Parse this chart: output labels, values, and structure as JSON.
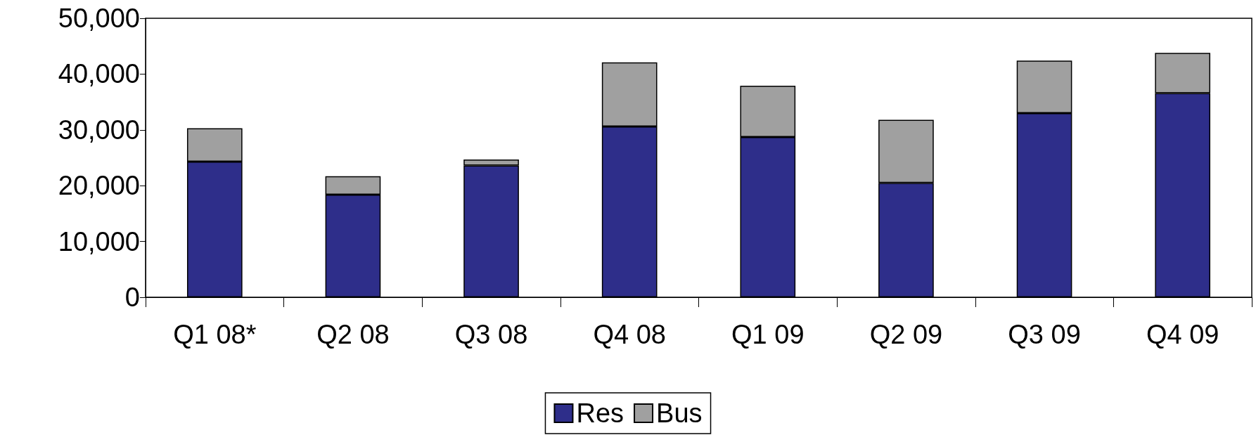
{
  "chart_data": {
    "type": "bar",
    "stacked": true,
    "categories": [
      "Q1 08*",
      "Q2 08",
      "Q3 08",
      "Q4 08",
      "Q1 09",
      "Q2 09",
      "Q3 09",
      "Q4 09"
    ],
    "series": [
      {
        "name": "Res",
        "color": "#2e2e8a",
        "values": [
          24300,
          18400,
          23600,
          30600,
          28700,
          20500,
          33000,
          36600
        ]
      },
      {
        "name": "Bus",
        "color": "#a0a0a0",
        "values": [
          6000,
          3300,
          1100,
          11500,
          9200,
          11300,
          9400,
          7200
        ]
      }
    ],
    "ylim": [
      0,
      50000
    ],
    "yticks": [
      0,
      {
        "value": 10000,
        "label": "10,000"
      },
      {
        "value": 20000,
        "label": "20,000"
      },
      {
        "value": 30000,
        "label": "30,000"
      },
      {
        "value": 40000,
        "label": "40,000"
      },
      {
        "value": 50000,
        "label": "50,000"
      }
    ],
    "grid": false,
    "legend": "bottom"
  }
}
